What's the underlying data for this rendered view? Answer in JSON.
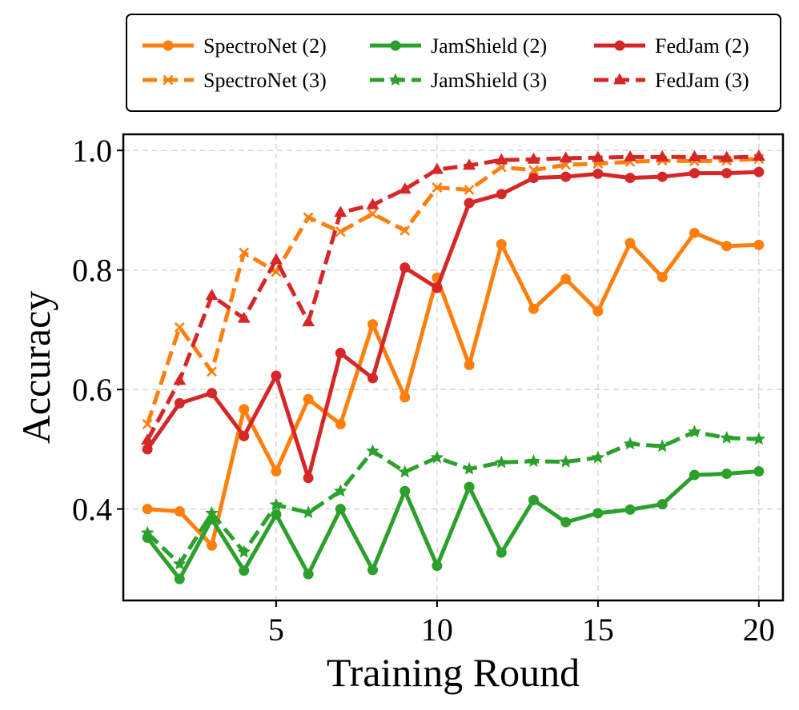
{
  "chart_data": {
    "type": "line",
    "title": "",
    "xlabel": "Training Round",
    "ylabel": "Accuracy",
    "xlim": [
      0.25,
      20.75
    ],
    "ylim": [
      0.247,
      1.027
    ],
    "xticks": [
      5,
      10,
      15,
      20
    ],
    "xtick_labels": [
      "5",
      "10",
      "15",
      "20"
    ],
    "yticks": [
      0.4,
      0.6,
      0.8,
      1.0
    ],
    "ytick_labels": [
      "0.4",
      "0.6",
      "0.8",
      "1.0"
    ],
    "grid": true,
    "legend_position": "top, above plot, 3 columns",
    "x": [
      1,
      2,
      3,
      4,
      5,
      6,
      7,
      8,
      9,
      10,
      11,
      12,
      13,
      14,
      15,
      16,
      17,
      18,
      19,
      20
    ],
    "series": [
      {
        "name": "SpectroNet (2)",
        "color": "#ff7f0e",
        "line": "solid",
        "marker": "circle",
        "values": [
          0.4,
          0.396,
          0.339,
          0.567,
          0.463,
          0.584,
          0.542,
          0.709,
          0.587,
          0.787,
          0.641,
          0.843,
          0.735,
          0.785,
          0.731,
          0.845,
          0.788,
          0.862,
          0.84,
          0.842
        ]
      },
      {
        "name": "SpectroNet (3)",
        "color": "#ff7f0e",
        "line": "dashed",
        "marker": "x",
        "values": [
          0.542,
          0.704,
          0.63,
          0.829,
          0.797,
          0.888,
          0.864,
          0.894,
          0.866,
          0.938,
          0.934,
          0.972,
          0.967,
          0.976,
          0.978,
          0.981,
          0.983,
          0.982,
          0.983,
          0.986
        ]
      },
      {
        "name": "JamShield (2)",
        "color": "#2ca02c",
        "line": "solid",
        "marker": "circle",
        "values": [
          0.352,
          0.283,
          0.383,
          0.297,
          0.391,
          0.291,
          0.4,
          0.298,
          0.43,
          0.305,
          0.437,
          0.327,
          0.415,
          0.378,
          0.393,
          0.399,
          0.408,
          0.457,
          0.459,
          0.463
        ]
      },
      {
        "name": "JamShield (3)",
        "color": "#2ca02c",
        "line": "dashed",
        "marker": "star",
        "values": [
          0.36,
          0.308,
          0.393,
          0.328,
          0.407,
          0.394,
          0.43,
          0.497,
          0.462,
          0.486,
          0.467,
          0.478,
          0.48,
          0.479,
          0.486,
          0.509,
          0.505,
          0.529,
          0.519,
          0.517
        ]
      },
      {
        "name": "FedJam (2)",
        "color": "#d62728",
        "line": "solid",
        "marker": "circle",
        "values": [
          0.5,
          0.577,
          0.594,
          0.522,
          0.623,
          0.452,
          0.661,
          0.619,
          0.804,
          0.77,
          0.912,
          0.927,
          0.954,
          0.956,
          0.961,
          0.954,
          0.956,
          0.962,
          0.962,
          0.964
        ]
      },
      {
        "name": "FedJam (3)",
        "color": "#d62728",
        "line": "dashed",
        "marker": "triangle",
        "values": [
          0.515,
          0.615,
          0.757,
          0.719,
          0.817,
          0.713,
          0.896,
          0.909,
          0.935,
          0.968,
          0.975,
          0.984,
          0.985,
          0.987,
          0.988,
          0.989,
          0.989,
          0.989,
          0.988,
          0.99
        ]
      }
    ]
  }
}
